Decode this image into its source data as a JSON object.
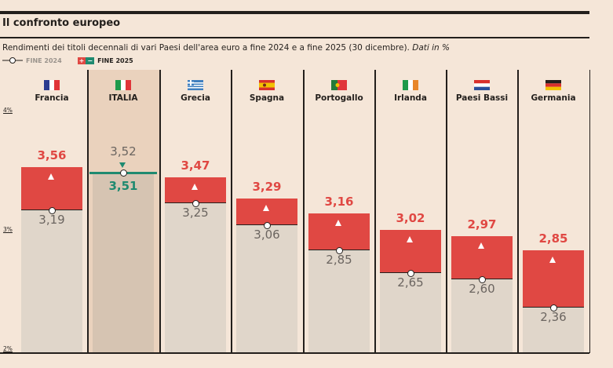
{
  "header": {
    "title": "Il confronto europeo",
    "subtitle": "Rendimenti dei titoli decennali di vari Paesi dell'area euro a fine 2024 e a fine 2025 (30 dicembre).",
    "subtitle_unit": "Dati in %",
    "legend_2024": "FINE 2024",
    "legend_2025": "FINE 2025"
  },
  "colors": {
    "increase": "#e04843",
    "decrease": "#1f8a70",
    "base": "#e0d6ca",
    "highlight_col": "#ead2bd",
    "highlight_bar": "#d6c4b2",
    "label_increase": "#e04843",
    "label_old": "#6b6560"
  },
  "chart_data": {
    "type": "bar",
    "title": "Il confronto europeo",
    "ylabel": "",
    "ylim": [
      2,
      4
    ],
    "yticks": [
      "4%",
      "3%",
      "2%"
    ],
    "highlight": "ITALIA",
    "categories": [
      "Francia",
      "ITALIA",
      "Grecia",
      "Spagna",
      "Portogallo",
      "Irlanda",
      "Paesi Bassi",
      "Germania"
    ],
    "flags": [
      "france-flag",
      "italy-flag",
      "greece-flag",
      "spain-flag",
      "portugal-flag",
      "ireland-flag",
      "netherlands-flag",
      "germany-flag"
    ],
    "series": [
      {
        "name": "FINE 2024",
        "values": [
          3.19,
          3.52,
          3.25,
          3.06,
          2.85,
          2.65,
          2.6,
          2.36
        ],
        "labels": [
          "3,19",
          "3,52",
          "3,25",
          "3,06",
          "2,85",
          "2,65",
          "2,60",
          "2,36"
        ]
      },
      {
        "name": "FINE 2025",
        "values": [
          3.56,
          3.51,
          3.47,
          3.29,
          3.16,
          3.02,
          2.97,
          2.85
        ],
        "labels": [
          "3,56",
          "3,51",
          "3,47",
          "3,29",
          "3,16",
          "3,02",
          "2,97",
          "2,85"
        ]
      }
    ]
  }
}
